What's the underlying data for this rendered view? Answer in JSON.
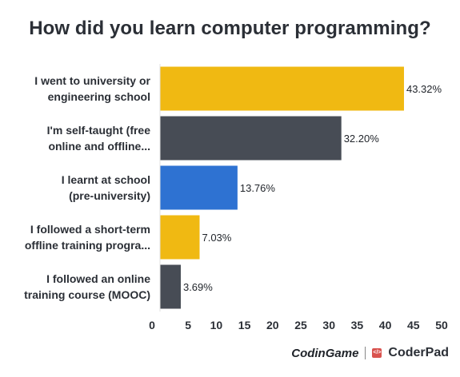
{
  "chart_data": {
    "type": "bar",
    "orientation": "horizontal",
    "title": "How did you learn computer programming?",
    "categories": [
      [
        "I went to university or",
        "engineering school"
      ],
      [
        "I'm self-taught (free",
        "online and offline..."
      ],
      [
        "I learnt at school",
        "(pre-university)"
      ],
      [
        "I followed a short-term",
        "offline training progra..."
      ],
      [
        "I followed an online",
        "training course (MOOC)"
      ]
    ],
    "values": [
      43.32,
      32.2,
      13.76,
      7.03,
      3.69
    ],
    "value_labels": [
      "43.32%",
      "32.20%",
      "13.76%",
      "7.03%",
      "3.69%"
    ],
    "bar_colors": [
      "#f0b912",
      "#474c55",
      "#2e72d2",
      "#f0b912",
      "#474c55"
    ],
    "xlim": [
      0,
      50
    ],
    "xticks": [
      0,
      5,
      10,
      15,
      20,
      25,
      30,
      35,
      40,
      45,
      50
    ],
    "grid": false,
    "xlabel": "",
    "ylabel": ""
  },
  "branding": {
    "codingame": "CodinGame",
    "coderpad_icon": "</>",
    "coderpad": "CoderPad"
  }
}
